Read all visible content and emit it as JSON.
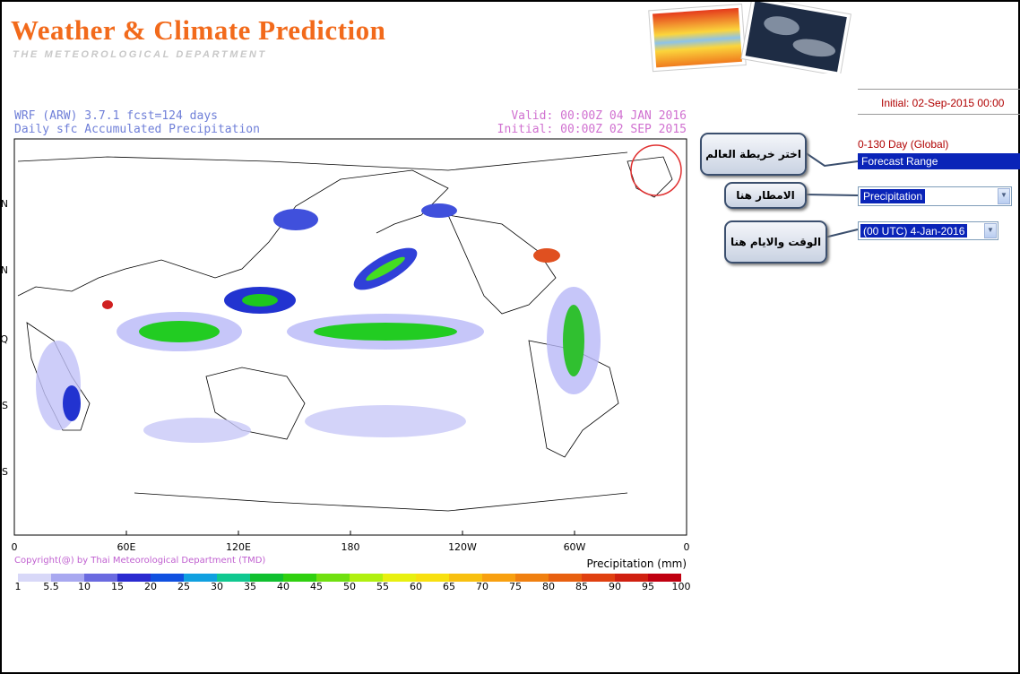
{
  "header": {
    "title": "Weather & Climate Prediction",
    "subtitle": "THE METEOROLOGICAL DEPARTMENT"
  },
  "map": {
    "model_line": "WRF (ARW) 3.7.1   fcst=124 days",
    "product": "Daily sfc Accumulated Precipitation",
    "valid": "Valid: 00:00Z 04 JAN 2016",
    "initial": "Initial: 00:00Z 02 SEP 2015",
    "lon_labels": [
      "0",
      "60E",
      "120E",
      "180",
      "120W",
      "60W",
      "0"
    ],
    "lat_labels": [
      "N",
      "N",
      "Q",
      "S",
      "S"
    ],
    "copyright": "Copyright(@) by Thai Meteorological Department (TMD)",
    "legend_title": "Precipitation (mm)",
    "legend_labels": [
      "1",
      "5.5",
      "10",
      "15",
      "20",
      "25",
      "30",
      "35",
      "40",
      "45",
      "50",
      "55",
      "60",
      "65",
      "70",
      "75",
      "80",
      "85",
      "90",
      "95",
      "100"
    ]
  },
  "panel": {
    "initial": "Initial: 02-Sep-2015 00:00",
    "range_label": "0-130 Day (Global)",
    "range_select": "Forecast Range",
    "variable_select": "Precipitation",
    "time_select": "(00 UTC) 4-Jan-2016"
  },
  "callouts": [
    "اختر خريطة العالم",
    "الامطار هنا",
    "الوقت والايام هنا"
  ]
}
